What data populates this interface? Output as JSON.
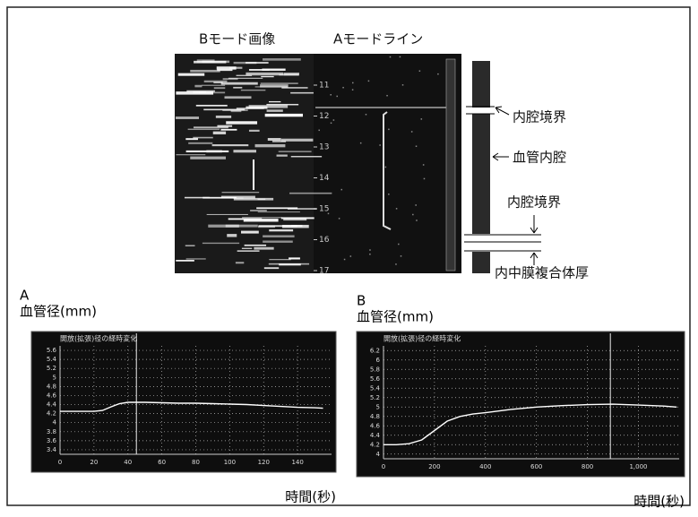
{
  "figure": {
    "bmode_label": "Bモード画像",
    "amode_label": "Aモードライン",
    "depth_ticks": [
      11,
      12,
      13,
      14,
      15,
      16,
      17
    ],
    "annotations": [
      "内腔境界",
      "血管内腔",
      "内腔境界",
      "内中膜複合体厚"
    ]
  },
  "chart_data": [
    {
      "type": "line",
      "label": "A",
      "y_label": "血管径(mm)",
      "x_label": "時間(秒)",
      "title": "開放(拡張)径の経時変化",
      "x": [
        0,
        10,
        20,
        25,
        30,
        35,
        40,
        50,
        60,
        70,
        80,
        90,
        100,
        110,
        120,
        130,
        140,
        150,
        155
      ],
      "series": [
        {
          "color": "#ffffff",
          "values": [
            4.25,
            4.25,
            4.25,
            4.27,
            4.35,
            4.42,
            4.45,
            4.45,
            4.44,
            4.43,
            4.43,
            4.42,
            4.41,
            4.4,
            4.38,
            4.36,
            4.34,
            4.33,
            4.32
          ]
        }
      ],
      "vline": 45,
      "xlim": [
        0,
        160
      ],
      "ylim": [
        3.3,
        5.7
      ],
      "xticks": [
        0,
        20,
        40,
        60,
        80,
        100,
        120,
        140
      ],
      "yticks": [
        3.4,
        3.6,
        3.8,
        4,
        4.2,
        4.4,
        4.6,
        4.8,
        5,
        5.2,
        5.4,
        5.6
      ],
      "grid": true
    },
    {
      "type": "line",
      "label": "B",
      "y_label": "血管径(mm)",
      "x_label": "時間(秒)",
      "title": "開放(拡張)径の経時変化",
      "x": [
        0,
        50,
        100,
        150,
        200,
        250,
        300,
        350,
        400,
        500,
        600,
        700,
        800,
        900,
        1000,
        1100,
        1150
      ],
      "series": [
        {
          "color": "#ffffff",
          "values": [
            4.2,
            4.2,
            4.22,
            4.3,
            4.5,
            4.7,
            4.8,
            4.85,
            4.88,
            4.95,
            5.0,
            5.03,
            5.05,
            5.06,
            5.04,
            5.02,
            5.0
          ]
        }
      ],
      "vline": 890,
      "xlim": [
        0,
        1160
      ],
      "ylim": [
        3.9,
        6.3
      ],
      "xticks": [
        0,
        200,
        400,
        600,
        800,
        {
          "value": 1000,
          "label": "1,000"
        }
      ],
      "yticks": [
        4,
        4.2,
        4.4,
        4.6,
        4.8,
        5,
        5.2,
        5.4,
        5.6,
        5.8,
        6,
        6.2
      ],
      "grid": true
    }
  ]
}
